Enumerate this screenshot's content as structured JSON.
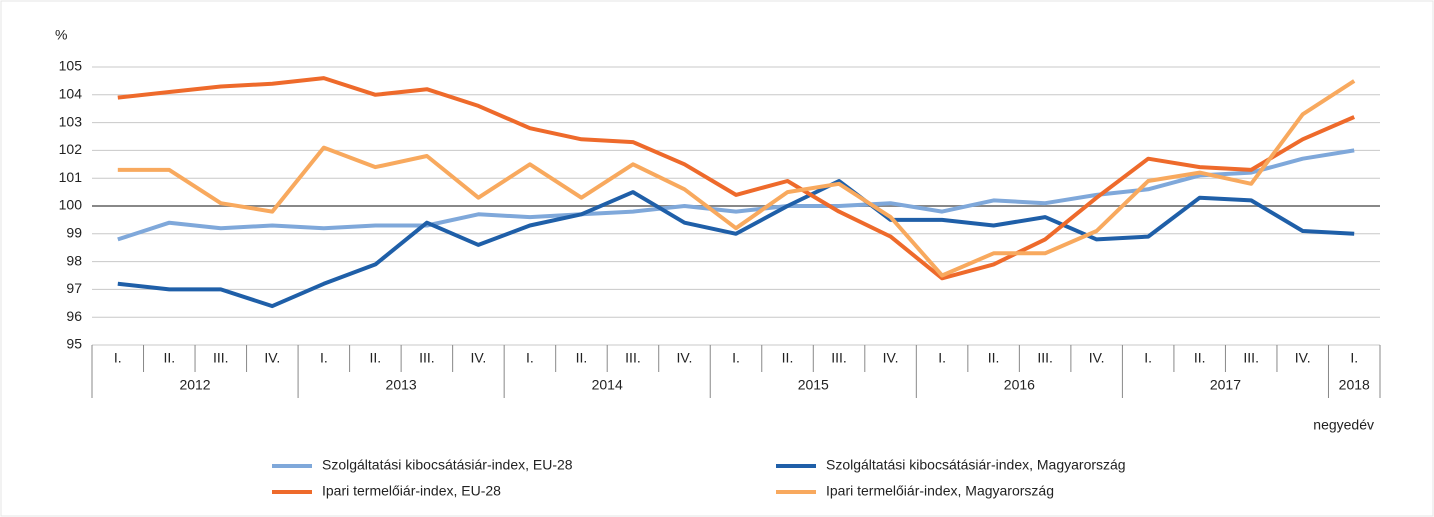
{
  "chart_data": {
    "type": "line",
    "y_label": "%",
    "x_label": "negyedév",
    "groups": [
      {
        "label": "2012",
        "categories": [
          "I.",
          "II.",
          "III.",
          "IV."
        ]
      },
      {
        "label": "2013",
        "categories": [
          "I.",
          "II.",
          "III.",
          "IV."
        ]
      },
      {
        "label": "2014",
        "categories": [
          "I.",
          "II.",
          "III.",
          "IV."
        ]
      },
      {
        "label": "2015",
        "categories": [
          "I.",
          "II.",
          "III.",
          "IV."
        ]
      },
      {
        "label": "2016",
        "categories": [
          "I.",
          "II.",
          "III.",
          "IV."
        ]
      },
      {
        "label": "2017",
        "categories": [
          "I.",
          "II.",
          "III.",
          "IV."
        ]
      },
      {
        "label": "2018",
        "categories": [
          "I."
        ]
      }
    ],
    "ylim": [
      95,
      105
    ],
    "yticks": [
      95,
      96,
      97,
      98,
      99,
      100,
      101,
      102,
      103,
      104,
      105
    ],
    "reference_line": 100,
    "grid": true,
    "series": [
      {
        "name": "Szolgáltatási kibocsátásiár-index, EU-28",
        "color": "#7fa8da",
        "values": [
          98.8,
          99.4,
          99.2,
          99.3,
          99.2,
          99.3,
          99.3,
          99.7,
          99.6,
          99.7,
          99.8,
          100.0,
          99.8,
          100.0,
          100.0,
          100.1,
          99.8,
          100.2,
          100.1,
          100.4,
          100.6,
          101.1,
          101.2,
          101.7,
          102.0
        ]
      },
      {
        "name": "Szolgáltatási kibocsátásiár-index, Magyarország",
        "color": "#1f5fa8",
        "values": [
          97.2,
          97.0,
          97.0,
          96.4,
          97.2,
          97.9,
          99.4,
          98.6,
          99.3,
          99.7,
          100.5,
          99.4,
          99.0,
          100.0,
          100.9,
          99.5,
          99.5,
          99.3,
          99.6,
          98.8,
          98.9,
          100.3,
          100.2,
          99.1,
          99.0
        ]
      },
      {
        "name": "Ipari termelőiár-index, EU-28",
        "color": "#ee6a2b",
        "values": [
          103.9,
          104.1,
          104.3,
          104.4,
          104.6,
          104.0,
          104.2,
          103.6,
          102.8,
          102.4,
          102.3,
          101.5,
          100.4,
          100.9,
          99.8,
          98.9,
          97.4,
          97.9,
          98.8,
          100.3,
          101.7,
          101.4,
          101.3,
          102.4,
          103.2
        ]
      },
      {
        "name": "Ipari termelőiár-index, Magyarország",
        "color": "#f8a95e",
        "values": [
          101.3,
          101.3,
          100.1,
          99.8,
          102.1,
          101.4,
          101.8,
          100.3,
          101.5,
          100.3,
          101.5,
          100.6,
          99.2,
          100.5,
          100.8,
          99.6,
          97.5,
          98.3,
          98.3,
          99.1,
          100.9,
          101.2,
          100.8,
          103.3,
          104.5
        ]
      }
    ]
  }
}
